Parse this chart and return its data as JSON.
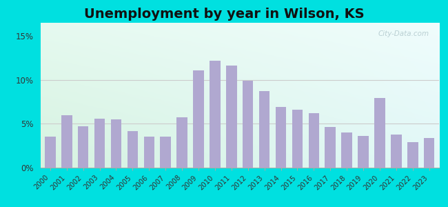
{
  "years": [
    2000,
    2001,
    2002,
    2003,
    2004,
    2005,
    2006,
    2007,
    2008,
    2009,
    2010,
    2011,
    2012,
    2013,
    2014,
    2015,
    2016,
    2017,
    2018,
    2019,
    2020,
    2021,
    2022,
    2023
  ],
  "values": [
    3.5,
    6.0,
    4.7,
    5.6,
    5.5,
    4.2,
    3.5,
    3.5,
    5.7,
    11.1,
    12.2,
    11.6,
    9.9,
    8.7,
    6.9,
    6.6,
    6.2,
    4.6,
    4.0,
    3.6,
    7.9,
    3.8,
    2.9,
    3.4
  ],
  "bar_color": "#b0a8d0",
  "title": "Unemployment by year in Wilson, KS",
  "title_fontsize": 14,
  "ylabel_ticks": [
    "0%",
    "5%",
    "10%",
    "15%"
  ],
  "ytick_values": [
    0,
    5,
    10,
    15
  ],
  "ylim": [
    0,
    16.5
  ],
  "bg_outer": "#00e0e0",
  "watermark": "City-Data.com",
  "grid_color": "#cccccc",
  "axis_line_color": "#aaaaaa"
}
